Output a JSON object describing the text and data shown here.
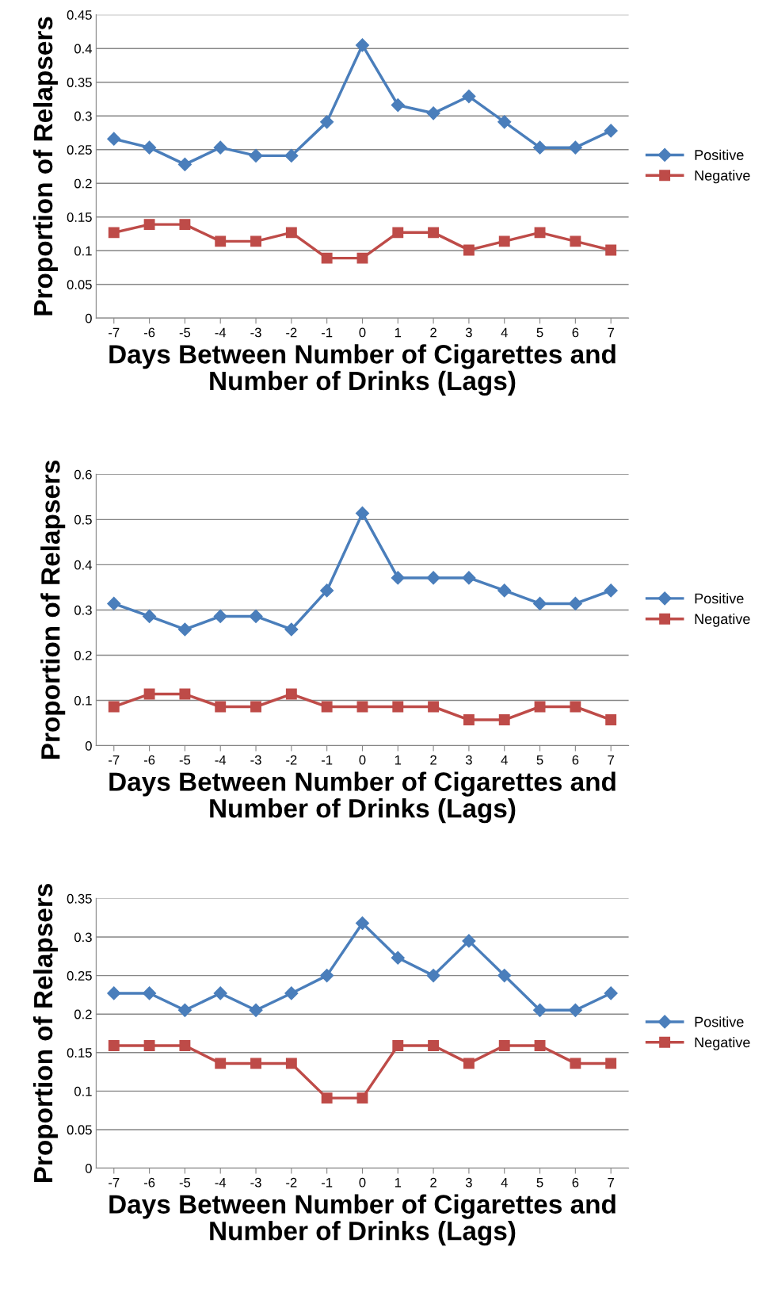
{
  "chart_data": [
    {
      "type": "line",
      "ylabel": "Proportion of Relapsers",
      "xlabel": "Days Between Number of Cigarettes and\nNumber of Drinks (Lags)",
      "categories": [
        "-7",
        "-6",
        "-5",
        "-4",
        "-3",
        "-2",
        "-1",
        "0",
        "1",
        "2",
        "3",
        "4",
        "5",
        "6",
        "7"
      ],
      "ylim": [
        0,
        0.45
      ],
      "yticks": [
        {
          "value": 0,
          "label": "0"
        },
        {
          "value": 0.05,
          "label": "0.05"
        },
        {
          "value": 0.1,
          "label": "0.1"
        },
        {
          "value": 0.15,
          "label": "0.15"
        },
        {
          "value": 0.2,
          "label": "0.2"
        },
        {
          "value": 0.25,
          "label": "0.25"
        },
        {
          "value": 0.3,
          "label": "0.3"
        },
        {
          "value": 0.35,
          "label": "0.35"
        },
        {
          "value": 0.4,
          "label": "0.4"
        },
        {
          "value": 0.45,
          "label": "0.45"
        }
      ],
      "grid": "y",
      "legend": "right",
      "line_style": "solid",
      "series": [
        {
          "name": "Positive",
          "color": "#4a7ebb",
          "marker": "diamond",
          "values": [
            0.266,
            0.253,
            0.228,
            0.253,
            0.241,
            0.241,
            0.291,
            0.405,
            0.316,
            0.304,
            0.329,
            0.291,
            0.253,
            0.253,
            0.278
          ]
        },
        {
          "name": "Negative",
          "color": "#be4b48",
          "marker": "square",
          "values": [
            0.127,
            0.139,
            0.139,
            0.114,
            0.114,
            0.127,
            0.089,
            0.089,
            0.127,
            0.127,
            0.101,
            0.114,
            0.127,
            0.114,
            0.101
          ]
        }
      ]
    },
    {
      "type": "line",
      "ylabel": "Proportion of Relapsers",
      "xlabel": "Days Between Number of Cigarettes and\nNumber of Drinks (Lags)",
      "categories": [
        "-7",
        "-6",
        "-5",
        "-4",
        "-3",
        "-2",
        "-1",
        "0",
        "1",
        "2",
        "3",
        "4",
        "5",
        "6",
        "7"
      ],
      "ylim": [
        0,
        0.6
      ],
      "yticks": [
        {
          "value": 0,
          "label": "0"
        },
        {
          "value": 0.1,
          "label": "0.1"
        },
        {
          "value": 0.2,
          "label": "0.2"
        },
        {
          "value": 0.3,
          "label": "0.3"
        },
        {
          "value": 0.4,
          "label": "0.4"
        },
        {
          "value": 0.5,
          "label": "0.5"
        },
        {
          "value": 0.6,
          "label": "0.6"
        }
      ],
      "grid": "y",
      "legend": "right",
      "line_style": "solid",
      "series": [
        {
          "name": "Positive",
          "color": "#4a7ebb",
          "marker": "diamond",
          "values": [
            0.314,
            0.286,
            0.257,
            0.286,
            0.286,
            0.257,
            0.343,
            0.514,
            0.371,
            0.371,
            0.371,
            0.343,
            0.314,
            0.314,
            0.343
          ]
        },
        {
          "name": "Negative",
          "color": "#be4b48",
          "marker": "square",
          "values": [
            0.086,
            0.114,
            0.114,
            0.086,
            0.086,
            0.114,
            0.086,
            0.086,
            0.086,
            0.086,
            0.057,
            0.057,
            0.086,
            0.086,
            0.057
          ]
        }
      ]
    },
    {
      "type": "line",
      "ylabel": "Proportion of Relapsers",
      "xlabel": "Days Between Number of Cigarettes and\nNumber of Drinks (Lags)",
      "categories": [
        "-7",
        "-6",
        "-5",
        "-4",
        "-3",
        "-2",
        "-1",
        "0",
        "1",
        "2",
        "3",
        "4",
        "5",
        "6",
        "7"
      ],
      "ylim": [
        0,
        0.35
      ],
      "yticks": [
        {
          "value": 0,
          "label": "0"
        },
        {
          "value": 0.05,
          "label": "0.05"
        },
        {
          "value": 0.1,
          "label": "0.1"
        },
        {
          "value": 0.15,
          "label": "0.15"
        },
        {
          "value": 0.2,
          "label": "0.2"
        },
        {
          "value": 0.25,
          "label": "0.25"
        },
        {
          "value": 0.3,
          "label": "0.3"
        },
        {
          "value": 0.35,
          "label": "0.35"
        }
      ],
      "grid": "y",
      "legend": "right",
      "line_style": "solid",
      "series": [
        {
          "name": "Positive",
          "color": "#4a7ebb",
          "marker": "diamond",
          "values": [
            0.227,
            0.227,
            0.205,
            0.227,
            0.205,
            0.227,
            0.25,
            0.318,
            0.273,
            0.25,
            0.295,
            0.25,
            0.205,
            0.205,
            0.227
          ]
        },
        {
          "name": "Negative",
          "color": "#be4b48",
          "marker": "square",
          "values": [
            0.159,
            0.159,
            0.159,
            0.136,
            0.136,
            0.136,
            0.091,
            0.091,
            0.159,
            0.159,
            0.136,
            0.159,
            0.159,
            0.136,
            0.136
          ]
        }
      ]
    }
  ]
}
